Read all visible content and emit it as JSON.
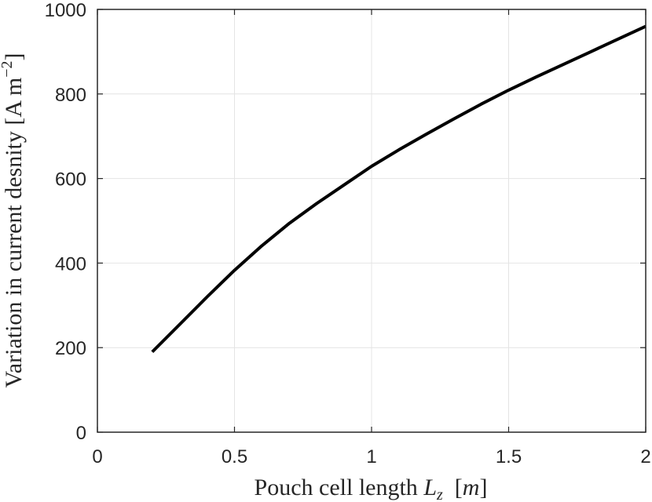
{
  "chart_data": {
    "type": "line",
    "title": "",
    "xlabel": "Pouch cell length",
    "xlabel_symbol": "L",
    "xlabel_subscript": "z",
    "xlabel_unit": "m",
    "ylabel": "Variation in current desnity",
    "ylabel_unit": "A m",
    "ylabel_unit_exponent": "−2",
    "xlim": [
      0,
      2
    ],
    "ylim": [
      0,
      1000
    ],
    "xticks": [
      "0",
      "0.5",
      "1",
      "1.5",
      "2"
    ],
    "yticks": [
      "0",
      "200",
      "400",
      "600",
      "800",
      "1000"
    ],
    "grid": true,
    "series": [
      {
        "color": "#000000",
        "x": [
          0.2,
          0.3,
          0.4,
          0.5,
          0.6,
          0.7,
          0.8,
          0.9,
          1.0,
          1.1,
          1.2,
          1.3,
          1.4,
          1.5,
          1.6,
          1.7,
          1.8,
          1.9,
          2.0
        ],
        "y": [
          190,
          255,
          320,
          383,
          441,
          494,
          541,
          585,
          629,
          668,
          705,
          741,
          776,
          809,
          840,
          870,
          900,
          930,
          960
        ]
      }
    ]
  }
}
